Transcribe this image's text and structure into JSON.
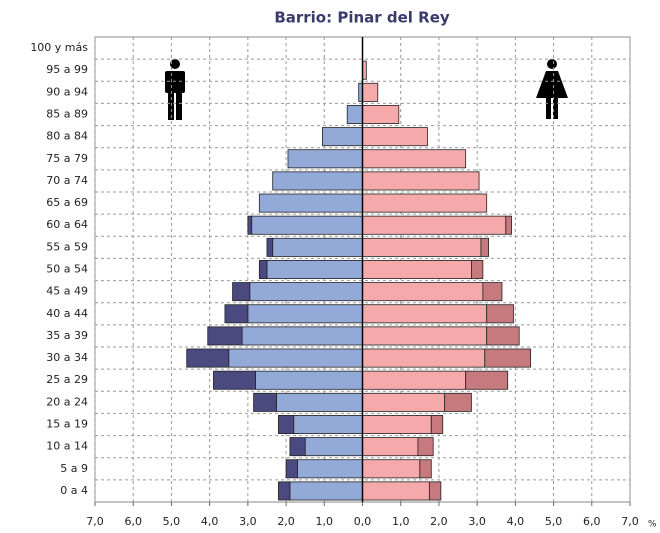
{
  "chart_data": {
    "type": "pyramid",
    "title": "Barrio: Pinar del Rey",
    "categories": [
      "0 a 4",
      "5 a 9",
      "10 a 14",
      "15 a 19",
      "20 a 24",
      "25 a 29",
      "30 a 34",
      "35 a 39",
      "40 a 44",
      "45 a 49",
      "50 a 54",
      "55 a 59",
      "60 a 64",
      "65 a 69",
      "70 a 74",
      "75 a 79",
      "80 a 84",
      "85 a 89",
      "90 a 94",
      "95 a 99",
      "100 y más"
    ],
    "male": {
      "series": [
        {
          "color": "#93a9d8",
          "values": [
            1.9,
            1.7,
            1.5,
            1.8,
            2.25,
            2.8,
            3.5,
            3.15,
            3.0,
            2.95,
            2.5,
            2.35,
            2.9,
            2.7,
            2.35,
            1.95,
            1.05,
            0.4,
            0.1,
            0,
            0
          ]
        },
        {
          "color": "#4a4a80",
          "values": [
            0.3,
            0.3,
            0.4,
            0.4,
            0.6,
            1.1,
            1.1,
            0.9,
            0.6,
            0.45,
            0.2,
            0.15,
            0.1,
            0,
            0,
            0,
            0,
            0,
            0,
            0,
            0
          ]
        }
      ]
    },
    "female": {
      "series": [
        {
          "color": "#f5a9aa",
          "values": [
            1.75,
            1.5,
            1.45,
            1.8,
            2.15,
            2.7,
            3.2,
            3.25,
            3.25,
            3.15,
            2.85,
            3.1,
            3.75,
            3.25,
            3.05,
            2.7,
            1.7,
            0.95,
            0.4,
            0.1,
            0
          ]
        },
        {
          "color": "#c67a7e",
          "values": [
            0.3,
            0.3,
            0.4,
            0.3,
            0.7,
            1.1,
            1.2,
            0.85,
            0.7,
            0.5,
            0.3,
            0.2,
            0.15,
            0,
            0,
            0,
            0,
            0,
            0,
            0,
            0
          ]
        }
      ]
    },
    "xlim": [
      -7,
      7
    ],
    "xticks": [
      {
        "value": -7,
        "label": "7,0"
      },
      {
        "value": -6,
        "label": "6,0"
      },
      {
        "value": -5,
        "label": "5,0"
      },
      {
        "value": -4,
        "label": "4,0"
      },
      {
        "value": -3,
        "label": "3,0"
      },
      {
        "value": -2,
        "label": "2,0"
      },
      {
        "value": -1,
        "label": "1,0"
      },
      {
        "value": 0,
        "label": "0,0"
      },
      {
        "value": 1,
        "label": "1,0"
      },
      {
        "value": 2,
        "label": "2,0"
      },
      {
        "value": 3,
        "label": "3,0"
      },
      {
        "value": 4,
        "label": "4,0"
      },
      {
        "value": 5,
        "label": "5,0"
      },
      {
        "value": 6,
        "label": "6,0"
      },
      {
        "value": 7,
        "label": "7,0"
      }
    ],
    "xlabel": "%",
    "grid": true
  }
}
